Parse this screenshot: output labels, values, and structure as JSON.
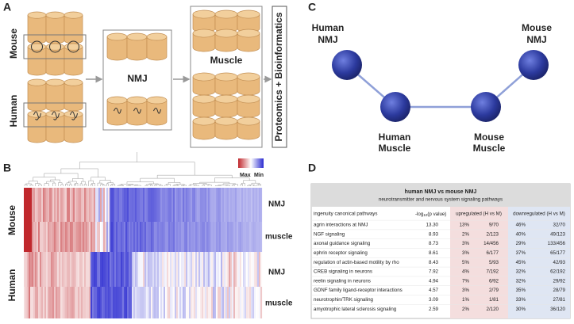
{
  "panel_labels": [
    "A",
    "B",
    "C",
    "D"
  ],
  "panel_a": {
    "species": [
      "Mouse",
      "Human"
    ],
    "boxes": [
      "NMJ",
      "Muscle"
    ],
    "output": "Proteomics + Bioinformatics"
  },
  "panel_b": {
    "legend": [
      "Max",
      "Min"
    ],
    "species": [
      "Mouse",
      "Human"
    ],
    "rows": [
      "NMJ",
      "muscle",
      "NMJ",
      "muscle"
    ]
  },
  "panel_c": {
    "nodes": [
      [
        "Human",
        "NMJ"
      ],
      [
        "Human",
        "Muscle"
      ],
      [
        "Mouse",
        "Muscle"
      ],
      [
        "Mouse",
        "NMJ"
      ]
    ]
  },
  "panel_d": {
    "title": "human NMJ vs mouse NMJ",
    "subtitle": "neurotransmitter and nervous system signaling pathways",
    "columns": {
      "pathways": "ingenuity canonical pathways",
      "pvalue": {
        "pre": "-log",
        "sub": "10",
        "post": "(p value)"
      },
      "up": "upregulated (H vs M)",
      "down": "downregulated (H vs M)"
    },
    "rows": [
      [
        "agrin interactions at NMJ",
        "13.30",
        "13%",
        "9/70",
        "46%",
        "32/70"
      ],
      [
        "NGF signaling",
        "8.93",
        "2%",
        "2/123",
        "40%",
        "49/123"
      ],
      [
        "axonal guidance signaling",
        "8.73",
        "3%",
        "14/456",
        "29%",
        "133/456"
      ],
      [
        "ephrin receptor signaling",
        "8.61",
        "3%",
        "6/177",
        "37%",
        "65/177"
      ],
      [
        "regulation of actin-based motility by rho",
        "8.43",
        "5%",
        "5/93",
        "45%",
        "42/93"
      ],
      [
        "CREB signaling in neurons",
        "7.92",
        "4%",
        "7/192",
        "32%",
        "62/192"
      ],
      [
        "reelin signaling in neurons",
        "4.94",
        "7%",
        "6/92",
        "32%",
        "29/92"
      ],
      [
        "GDNF family ligand-receptor interactions",
        "4.57",
        "3%",
        "2/79",
        "35%",
        "28/79"
      ],
      [
        "neurotrophin/TRK signaling",
        "3.09",
        "1%",
        "1/81",
        "33%",
        "27/81"
      ],
      [
        "amyotrophic lateral sclerosis signaling",
        "2.59",
        "2%",
        "2/120",
        "30%",
        "36/120"
      ]
    ]
  }
}
